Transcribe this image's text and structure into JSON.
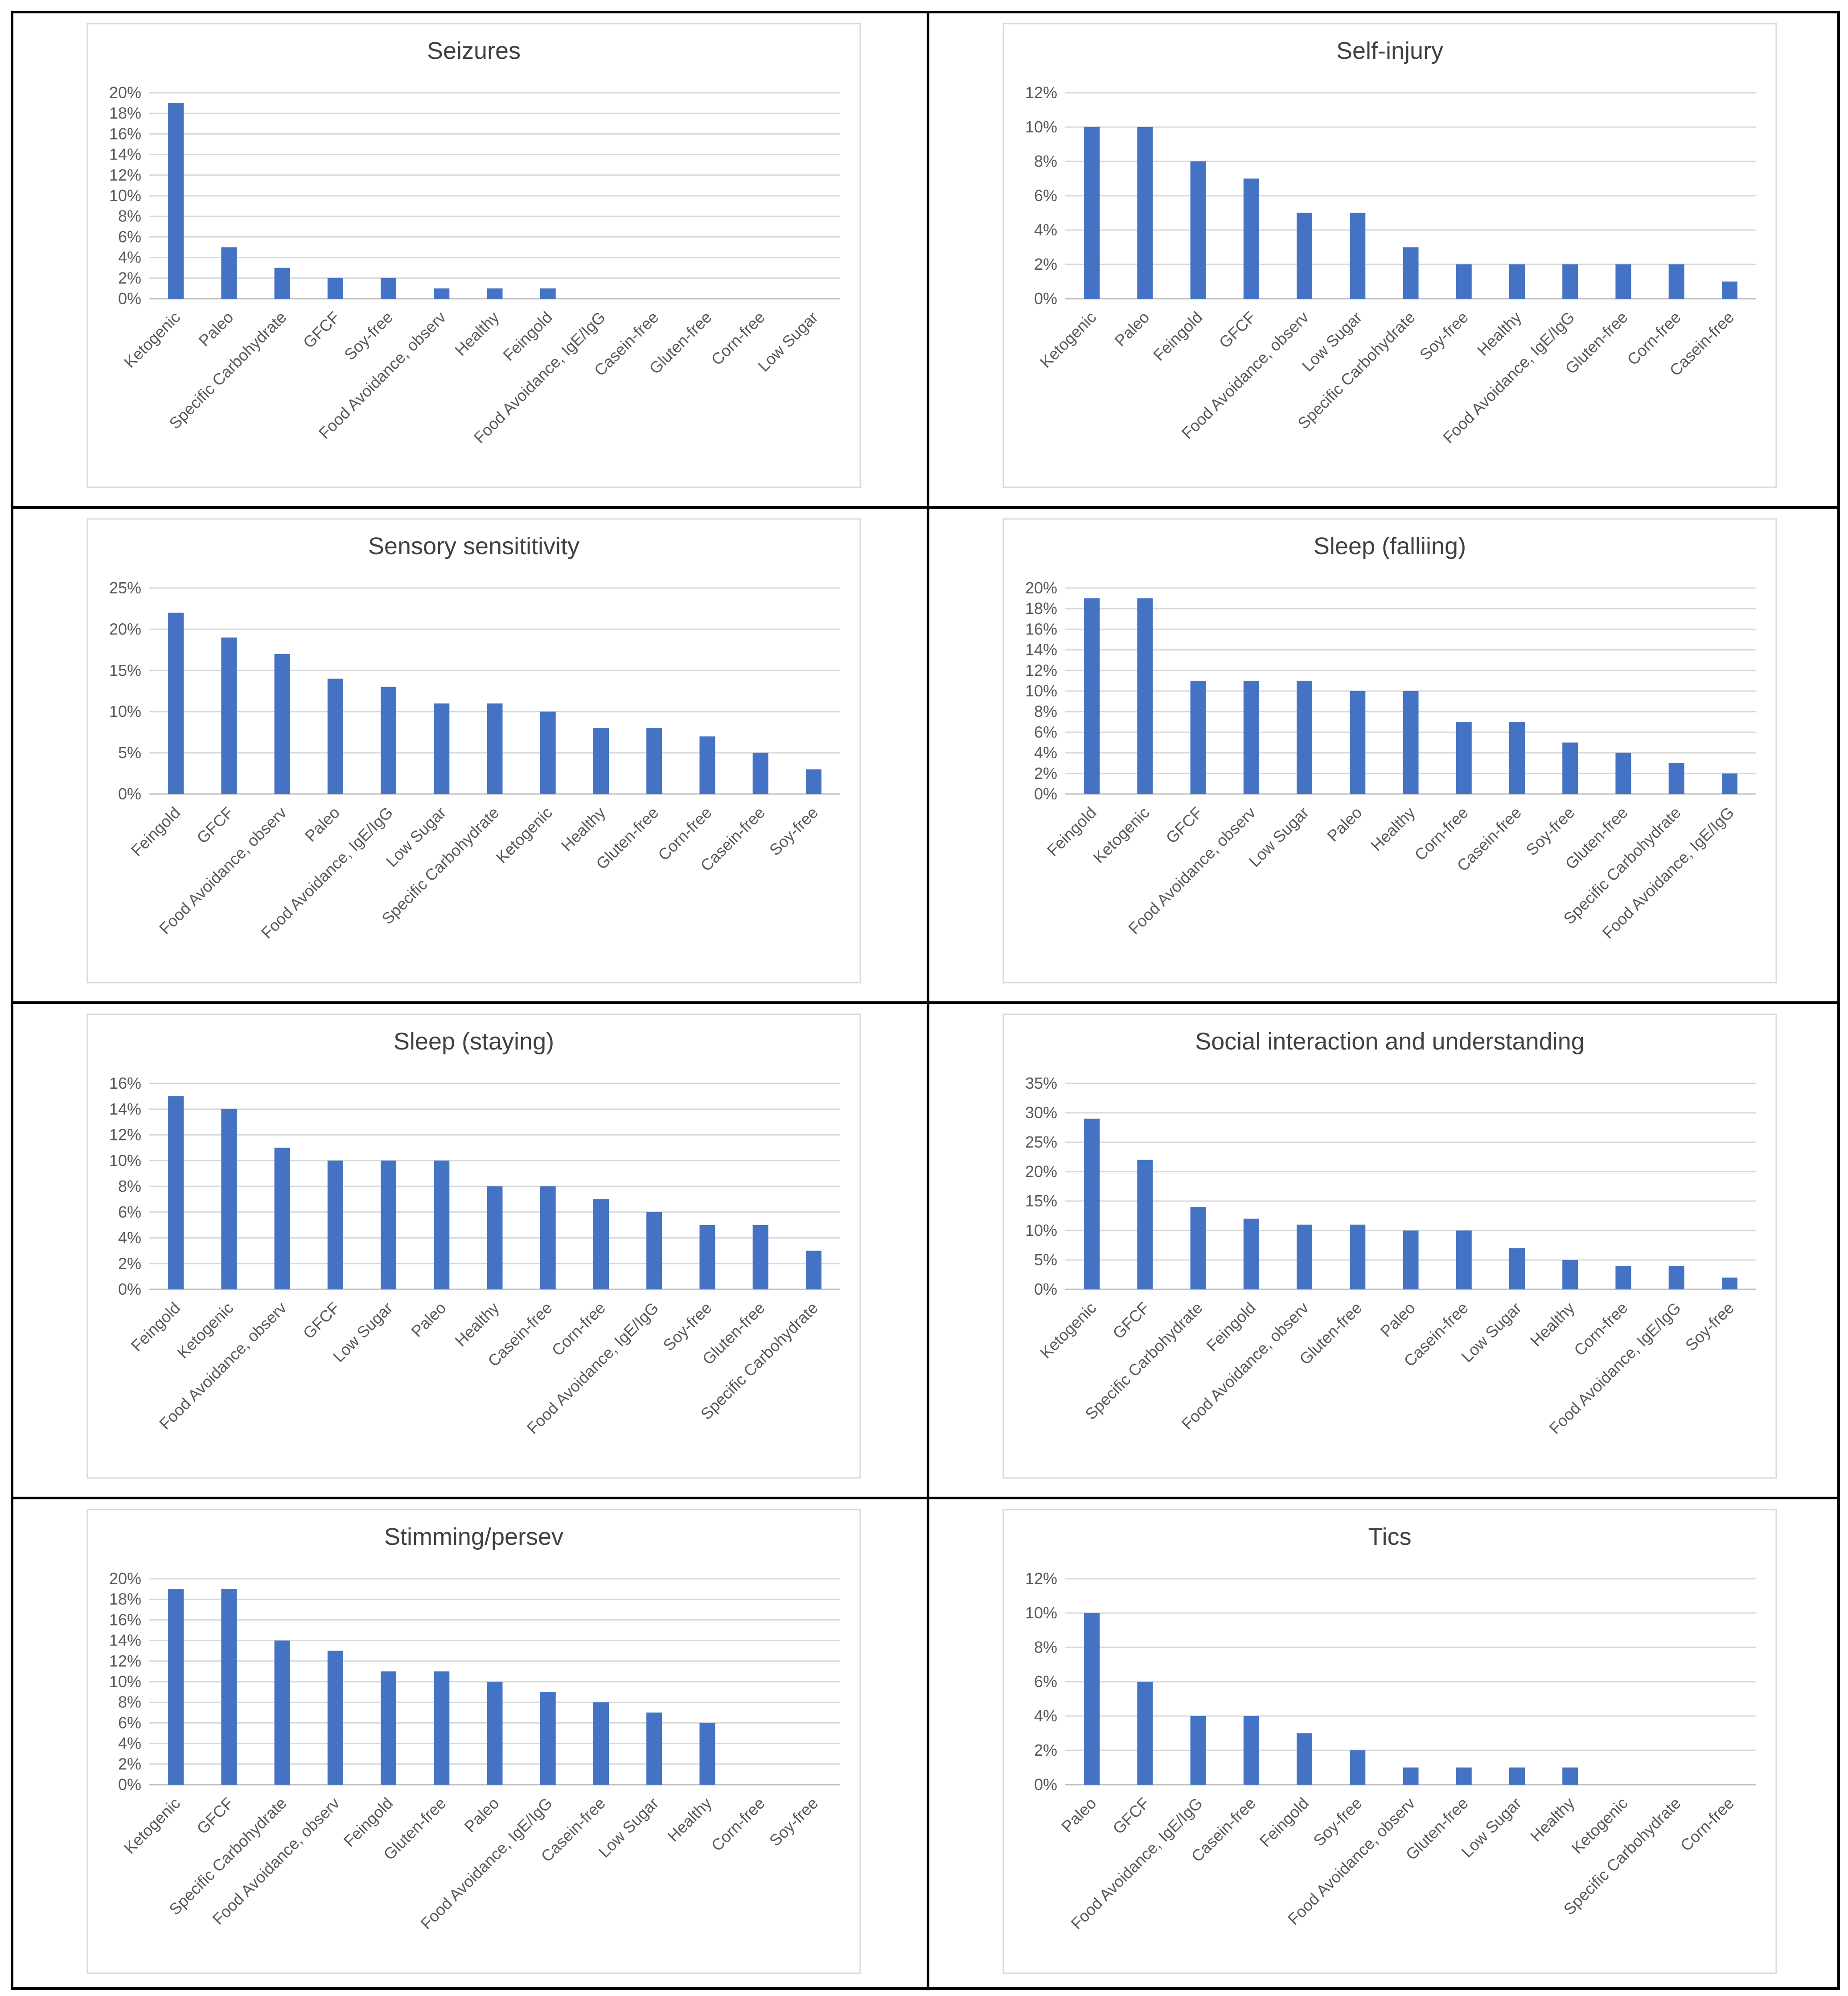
{
  "colors": {
    "bar": "#4472C4",
    "grid": "#D9D9D9",
    "axis": "#BFBFBF",
    "text": "#595959",
    "title": "#404040",
    "border": "#000000"
  },
  "chart_data": [
    {
      "type": "bar",
      "title": "Seizures",
      "categories": [
        "Ketogenic",
        "Paleo",
        "Specific Carbohydrate",
        "GFCF",
        "Soy-free",
        "Food Avoidance, observ",
        "Healthy",
        "Feingold",
        "Food Avoidance, IgE/IgG",
        "Casein-free",
        "Gluten-free",
        "Corn-free",
        "Low Sugar"
      ],
      "values": [
        19,
        5,
        3,
        2,
        2,
        1,
        1,
        1,
        0,
        0,
        0,
        0,
        0
      ],
      "ylim": [
        0,
        20
      ],
      "ystep": 2,
      "yunit": "%",
      "grid": true,
      "legend": "none"
    },
    {
      "type": "bar",
      "title": "Self-injury",
      "categories": [
        "Ketogenic",
        "Paleo",
        "Feingold",
        "GFCF",
        "Food Avoidance, observ",
        "Low Sugar",
        "Specific Carbohydrate",
        "Soy-free",
        "Healthy",
        "Food Avoidance, IgE/IgG",
        "Gluten-free",
        "Corn-free",
        "Casein-free"
      ],
      "values": [
        10,
        10,
        8,
        7,
        5,
        5,
        3,
        2,
        2,
        2,
        2,
        2,
        1
      ],
      "ylim": [
        0,
        12
      ],
      "ystep": 2,
      "yunit": "%",
      "grid": true,
      "legend": "none"
    },
    {
      "type": "bar",
      "title": "Sensory sensititivity",
      "categories": [
        "Feingold",
        "GFCF",
        "Food Avoidance, observ",
        "Paleo",
        "Food Avoidance, IgE/IgG",
        "Low Sugar",
        "Specific Carbohydrate",
        "Ketogenic",
        "Healthy",
        "Gluten-free",
        "Corn-free",
        "Casein-free",
        "Soy-free"
      ],
      "values": [
        22,
        19,
        17,
        14,
        13,
        11,
        11,
        10,
        8,
        8,
        7,
        5,
        3
      ],
      "ylim": [
        0,
        25
      ],
      "ystep": 5,
      "yunit": "%",
      "grid": true,
      "legend": "none"
    },
    {
      "type": "bar",
      "title": "Sleep (falliing)",
      "categories": [
        "Feingold",
        "Ketogenic",
        "GFCF",
        "Food Avoidance, observ",
        "Low Sugar",
        "Paleo",
        "Healthy",
        "Corn-free",
        "Casein-free",
        "Soy-free",
        "Gluten-free",
        "Specific Carbohydrate",
        "Food Avoidance, IgE/IgG"
      ],
      "values": [
        19,
        19,
        11,
        11,
        11,
        10,
        10,
        7,
        7,
        5,
        4,
        3,
        2
      ],
      "ylim": [
        0,
        20
      ],
      "ystep": 2,
      "yunit": "%",
      "grid": true,
      "legend": "none"
    },
    {
      "type": "bar",
      "title": "Sleep (staying)",
      "categories": [
        "Feingold",
        "Ketogenic",
        "Food Avoidance, observ",
        "GFCF",
        "Low Sugar",
        "Paleo",
        "Healthy",
        "Casein-free",
        "Corn-free",
        "Food Avoidance, IgE/IgG",
        "Soy-free",
        "Gluten-free",
        "Specific Carbohydrate"
      ],
      "values": [
        15,
        14,
        11,
        10,
        10,
        10,
        8,
        8,
        7,
        6,
        5,
        5,
        3
      ],
      "ylim": [
        0,
        16
      ],
      "ystep": 2,
      "yunit": "%",
      "grid": true,
      "legend": "none"
    },
    {
      "type": "bar",
      "title": "Social interaction and understanding",
      "categories": [
        "Ketogenic",
        "GFCF",
        "Specific Carbohydrate",
        "Feingold",
        "Food Avoidance, observ",
        "Gluten-free",
        "Paleo",
        "Casein-free",
        "Low Sugar",
        "Healthy",
        "Corn-free",
        "Food Avoidance, IgE/IgG",
        "Soy-free"
      ],
      "values": [
        29,
        22,
        14,
        12,
        11,
        11,
        10,
        10,
        7,
        5,
        4,
        4,
        2
      ],
      "ylim": [
        0,
        35
      ],
      "ystep": 5,
      "yunit": "%",
      "grid": true,
      "legend": "none"
    },
    {
      "type": "bar",
      "title": "Stimming/persev",
      "categories": [
        "Ketogenic",
        "GFCF",
        "Specific Carbohydrate",
        "Food Avoidance, observ",
        "Feingold",
        "Gluten-free",
        "Paleo",
        "Food Avoidance, IgE/IgG",
        "Casein-free",
        "Low Sugar",
        "Healthy",
        "Corn-free",
        "Soy-free"
      ],
      "values": [
        19,
        19,
        14,
        13,
        11,
        11,
        10,
        9,
        8,
        7,
        6,
        0,
        0
      ],
      "ylim": [
        0,
        20
      ],
      "ystep": 2,
      "yunit": "%",
      "grid": true,
      "legend": "none"
    },
    {
      "type": "bar",
      "title": "Tics",
      "categories": [
        "Paleo",
        "GFCF",
        "Food Avoidance, IgE/IgG",
        "Casein-free",
        "Feingold",
        "Soy-free",
        "Food Avoidance, observ",
        "Gluten-free",
        "Low Sugar",
        "Healthy",
        "Ketogenic",
        "Specific Carbohydrate",
        "Corn-free"
      ],
      "values": [
        10,
        6,
        4,
        4,
        3,
        2,
        1,
        1,
        1,
        1,
        0,
        0,
        0
      ],
      "ylim": [
        0,
        12
      ],
      "ystep": 2,
      "yunit": "%",
      "grid": true,
      "legend": "none"
    }
  ]
}
